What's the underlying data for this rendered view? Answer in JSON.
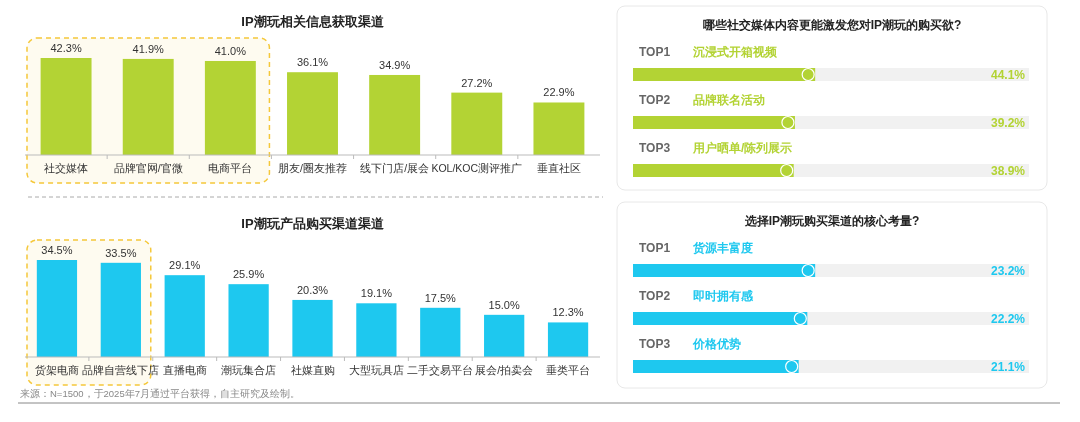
{
  "chart_data": [
    {
      "type": "bar",
      "title": "IP潮玩相关信息获取渠道",
      "categories": [
        "社交媒体",
        "品牌官网/官微",
        "电商平台",
        "朋友/圈友推荐",
        "线下门店/展会",
        "KOL/KOC测评推广",
        "垂直社区"
      ],
      "values": [
        42.3,
        41.9,
        41.0,
        36.1,
        34.9,
        27.2,
        22.9
      ],
      "value_labels": [
        "42.3%",
        "41.9%",
        "41.0%",
        "36.1%",
        "34.9%",
        "27.2%",
        "22.9%"
      ],
      "color": "#b3d334",
      "tick_labels": "x",
      "bands": [
        {
          "axis": "x",
          "from": "社交媒体",
          "to": "电商平台",
          "color": "#f5c83a"
        }
      ]
    },
    {
      "type": "bar",
      "title": "IP潮玩产品购买渠道渠道",
      "categories": [
        "货架电商",
        "品牌自营线下店",
        "直播电商",
        "潮玩集合店",
        "社媒直购",
        "大型玩具店",
        "二手交易平台",
        "展会/拍卖会",
        "垂类平台"
      ],
      "values": [
        34.5,
        33.5,
        29.1,
        25.9,
        20.3,
        19.1,
        17.5,
        15.0,
        12.3
      ],
      "value_labels": [
        "34.5%",
        "33.5%",
        "29.1%",
        "25.9%",
        "20.3%",
        "19.1%",
        "17.5%",
        "15.0%",
        "12.3%"
      ],
      "color": "#1ec8ef",
      "tick_labels": "x",
      "bands": [
        {
          "axis": "x",
          "from": "货架电商",
          "to": "品牌自营线下店",
          "color": "#f5c83a"
        }
      ],
      "annotations": [
        "来源：N=1500，于2025年7月通过平台获得，自主研究及绘制。"
      ]
    },
    {
      "type": "bar",
      "orientation": "horizontal",
      "title": "哪些社交媒体内容更能激发您对IP潮玩的购买欲?",
      "categories": [
        "沉浸式开箱视频",
        "品牌联名活动",
        "用户晒单/陈列展示"
      ],
      "values": [
        44.1,
        39.2,
        38.9
      ],
      "value_labels": [
        "44.1%",
        "39.2%",
        "38.9%"
      ],
      "color": "#b3d334",
      "tick_labels": "y",
      "annotations": [
        {
          "text": "TOP1",
          "y": "沉浸式开箱视频"
        },
        {
          "text": "TOP2",
          "y": "品牌联名活动"
        },
        {
          "text": "TOP3",
          "y": "用户晒单/陈列展示"
        }
      ]
    },
    {
      "type": "bar",
      "orientation": "horizontal",
      "title": "选择IP潮玩购买渠道的核心考量?",
      "categories": [
        "货源丰富度",
        "即时拥有感",
        "价格优势"
      ],
      "values": [
        23.2,
        22.2,
        21.1
      ],
      "value_labels": [
        "23.2%",
        "22.2%",
        "21.1%"
      ],
      "color": "#1ec8ef",
      "tick_labels": "y",
      "annotations": [
        {
          "text": "TOP1",
          "y": "货源丰富度"
        },
        {
          "text": "TOP2",
          "y": "即时拥有感"
        },
        {
          "text": "TOP3",
          "y": "价格优势"
        }
      ]
    }
  ]
}
